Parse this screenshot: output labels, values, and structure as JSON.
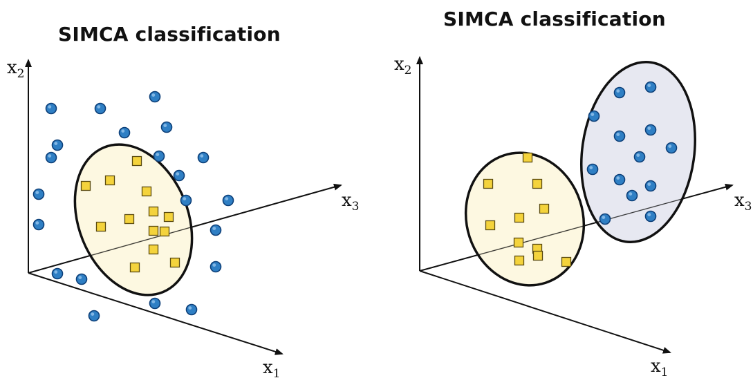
{
  "panels": [
    {
      "title": "SIMCA classification",
      "axes": {
        "x1": "x",
        "x1_sub": "1",
        "x2": "x",
        "x2_sub": "2",
        "x3": "x",
        "x3_sub": "3"
      },
      "circle_count": 21,
      "square_count": 16,
      "classes": 1
    },
    {
      "title": "SIMCA classification",
      "axes": {
        "x1": "x",
        "x1_sub": "1",
        "x2": "x",
        "x2_sub": "2",
        "x3": "x",
        "x3_sub": "3"
      },
      "circle_count": 13,
      "square_count": 13,
      "classes": 2
    }
  ],
  "colors": {
    "circle_fill": "#2f7fc4",
    "circle_stroke": "#0d3f78",
    "square_fill": "#f4d33c",
    "square_stroke": "#5a4a10",
    "ellipse_yellow": "#fdf7dc",
    "ellipse_blue": "#e4e6f0",
    "axis": "#111111"
  }
}
